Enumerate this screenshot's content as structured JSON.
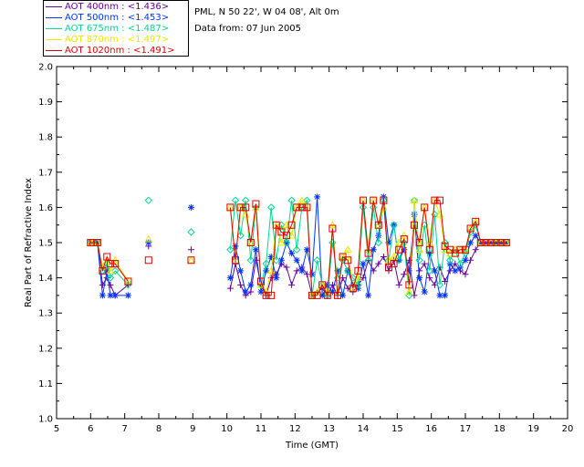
{
  "info": {
    "site": "PML, N 50 22', W 04 08', Alt 0m",
    "date": "Data from: 07 Jun 2005"
  },
  "legend": [
    {
      "label": "AOT  400nm : <1.436>",
      "color": "#660099",
      "marker": "plus"
    },
    {
      "label": "AOT  500nm : <1.453>",
      "color": "#0033ff",
      "marker": "star"
    },
    {
      "label": "AOT  675nm : <1.487>",
      "color": "#00d890",
      "marker": "diamond"
    },
    {
      "label": "AOT  870nm : <1.497>",
      "color": "#e8e800",
      "marker": "triangle"
    },
    {
      "label": "AOT 1020nm : <1.491>",
      "color": "#dd0000",
      "marker": "square"
    }
  ],
  "chart_data": {
    "type": "line",
    "xlabel": "Time (GMT)",
    "ylabel": "Real Part of Refractive Index",
    "xlim": [
      5,
      20
    ],
    "ylim": [
      1.0,
      2.0
    ],
    "xticks": [
      "5",
      "6",
      "7",
      "8",
      "9",
      "10",
      "11",
      "12",
      "13",
      "14",
      "15",
      "16",
      "17",
      "18",
      "19",
      "20"
    ],
    "yticks": [
      "1.0",
      "1.1",
      "1.2",
      "1.3",
      "1.4",
      "1.5",
      "1.6",
      "1.7",
      "1.8",
      "1.9",
      "2.0"
    ],
    "grid": false,
    "series": [
      {
        "name": "AOT  400nm : <1.436>",
        "color": "#660099",
        "marker": "plus",
        "x": [
          6.0,
          6.08,
          6.2,
          6.35,
          6.48,
          6.58,
          6.72,
          7.1,
          7.7,
          8.95,
          10.1,
          10.25,
          10.4,
          10.55,
          10.7,
          10.85,
          11.0,
          11.15,
          11.3,
          11.45,
          11.6,
          11.75,
          11.9,
          12.05,
          12.2,
          12.35,
          12.5,
          12.65,
          12.8,
          12.95,
          13.1,
          13.25,
          13.4,
          13.55,
          13.7,
          13.85,
          14.0,
          14.15,
          14.3,
          14.45,
          14.6,
          14.75,
          14.9,
          15.05,
          15.2,
          15.35,
          15.5,
          15.65,
          15.8,
          15.95,
          16.1,
          16.25,
          16.4,
          16.55,
          16.7,
          16.85,
          17.0,
          17.15,
          17.3,
          17.45,
          17.6,
          17.75,
          17.9,
          18.05,
          18.2
        ],
        "y": [
          1.5,
          1.5,
          1.5,
          1.38,
          1.4,
          1.38,
          1.35,
          1.38,
          1.49,
          1.48,
          1.37,
          1.44,
          1.38,
          1.35,
          1.36,
          1.45,
          1.38,
          1.35,
          1.4,
          1.41,
          1.44,
          1.43,
          1.38,
          1.42,
          1.43,
          1.41,
          1.35,
          1.36,
          1.37,
          1.35,
          1.38,
          1.35,
          1.4,
          1.37,
          1.36,
          1.38,
          1.4,
          1.45,
          1.42,
          1.44,
          1.46,
          1.42,
          1.45,
          1.38,
          1.41,
          1.45,
          1.35,
          1.42,
          1.44,
          1.4,
          1.38,
          1.43,
          1.39,
          1.42,
          1.44,
          1.42,
          1.41,
          1.45,
          1.48,
          1.5,
          1.5,
          1.5,
          1.5,
          1.5,
          1.5
        ]
      },
      {
        "name": "AOT  500nm : <1.453>",
        "color": "#0033ff",
        "marker": "star",
        "x": [
          6.0,
          6.08,
          6.2,
          6.35,
          6.48,
          6.58,
          6.72,
          7.1,
          7.7,
          8.95,
          10.1,
          10.25,
          10.4,
          10.55,
          10.7,
          10.85,
          11.0,
          11.15,
          11.3,
          11.45,
          11.6,
          11.75,
          11.9,
          12.05,
          12.2,
          12.35,
          12.5,
          12.65,
          12.8,
          12.95,
          13.1,
          13.25,
          13.4,
          13.55,
          13.7,
          13.85,
          14.0,
          14.15,
          14.3,
          14.45,
          14.6,
          14.75,
          14.9,
          15.05,
          15.2,
          15.35,
          15.5,
          15.65,
          15.8,
          15.95,
          16.1,
          16.25,
          16.4,
          16.55,
          16.7,
          16.85,
          17.0,
          17.15,
          17.3,
          17.45,
          17.6,
          17.75,
          17.9,
          18.05,
          18.2
        ],
        "y": [
          1.5,
          1.5,
          1.5,
          1.35,
          1.42,
          1.35,
          1.35,
          1.35,
          1.5,
          1.6,
          1.4,
          1.49,
          1.42,
          1.36,
          1.38,
          1.48,
          1.36,
          1.42,
          1.46,
          1.4,
          1.45,
          1.5,
          1.47,
          1.45,
          1.42,
          1.48,
          1.41,
          1.63,
          1.35,
          1.38,
          1.36,
          1.42,
          1.35,
          1.42,
          1.38,
          1.37,
          1.44,
          1.35,
          1.48,
          1.52,
          1.63,
          1.5,
          1.55,
          1.45,
          1.48,
          1.42,
          1.58,
          1.4,
          1.36,
          1.47,
          1.42,
          1.35,
          1.35,
          1.44,
          1.42,
          1.43,
          1.45,
          1.5,
          1.52,
          1.5,
          1.5,
          1.5,
          1.5,
          1.5,
          1.5
        ]
      },
      {
        "name": "AOT  675nm : <1.487>",
        "color": "#00d890",
        "marker": "diamond",
        "x": [
          6.0,
          6.08,
          6.2,
          6.35,
          6.48,
          6.58,
          6.72,
          7.1,
          7.7,
          8.95,
          10.1,
          10.25,
          10.4,
          10.55,
          10.7,
          10.85,
          11.0,
          11.15,
          11.3,
          11.45,
          11.6,
          11.75,
          11.9,
          12.05,
          12.2,
          12.35,
          12.5,
          12.65,
          12.8,
          12.95,
          13.1,
          13.25,
          13.4,
          13.55,
          13.7,
          13.85,
          14.0,
          14.15,
          14.3,
          14.45,
          14.6,
          14.75,
          14.9,
          15.05,
          15.2,
          15.35,
          15.5,
          15.65,
          15.8,
          15.95,
          16.1,
          16.25,
          16.4,
          16.55,
          16.7,
          16.85,
          17.0,
          17.15,
          17.3,
          17.45,
          17.6,
          17.75,
          17.9,
          18.05,
          18.2
        ],
        "y": [
          1.5,
          1.5,
          1.5,
          1.42,
          1.44,
          1.4,
          1.42,
          1.38,
          1.62,
          1.53,
          1.48,
          1.62,
          1.52,
          1.62,
          1.45,
          1.6,
          1.38,
          1.44,
          1.6,
          1.45,
          1.55,
          1.5,
          1.62,
          1.48,
          1.6,
          1.62,
          1.35,
          1.45,
          1.38,
          1.35,
          1.5,
          1.4,
          1.45,
          1.42,
          1.4,
          1.38,
          1.6,
          1.45,
          1.6,
          1.5,
          1.62,
          1.45,
          1.55,
          1.45,
          1.5,
          1.35,
          1.62,
          1.45,
          1.55,
          1.42,
          1.58,
          1.38,
          1.5,
          1.45,
          1.48,
          1.44,
          1.47,
          1.53,
          1.55,
          1.5,
          1.5,
          1.5,
          1.5,
          1.5,
          1.5
        ]
      },
      {
        "name": "AOT  870nm : <1.497>",
        "color": "#e8e800",
        "marker": "triangle",
        "x": [
          6.0,
          6.08,
          6.2,
          6.35,
          6.48,
          6.58,
          6.72,
          7.1,
          7.7,
          8.95,
          10.1,
          10.25,
          10.4,
          10.55,
          10.7,
          10.85,
          11.0,
          11.15,
          11.3,
          11.45,
          11.6,
          11.75,
          11.9,
          12.05,
          12.2,
          12.35,
          12.5,
          12.65,
          12.8,
          12.95,
          13.1,
          13.25,
          13.4,
          13.55,
          13.7,
          13.85,
          14.0,
          14.15,
          14.3,
          14.45,
          14.6,
          14.75,
          14.9,
          15.05,
          15.2,
          15.35,
          15.5,
          15.65,
          15.8,
          15.95,
          16.1,
          16.25,
          16.4,
          16.55,
          16.7,
          16.85,
          17.0,
          17.15,
          17.3,
          17.45,
          17.6,
          17.75,
          17.9,
          18.05,
          18.2
        ],
        "y": [
          1.5,
          1.5,
          1.5,
          1.43,
          1.45,
          1.42,
          1.45,
          1.39,
          1.51,
          1.45,
          1.6,
          1.45,
          1.6,
          1.58,
          1.5,
          1.6,
          1.38,
          1.36,
          1.42,
          1.55,
          1.5,
          1.55,
          1.52,
          1.6,
          1.62,
          1.6,
          1.35,
          1.36,
          1.38,
          1.36,
          1.55,
          1.36,
          1.46,
          1.48,
          1.37,
          1.4,
          1.62,
          1.48,
          1.62,
          1.55,
          1.6,
          1.45,
          1.46,
          1.5,
          1.52,
          1.36,
          1.62,
          1.48,
          1.6,
          1.5,
          1.62,
          1.58,
          1.48,
          1.47,
          1.48,
          1.48,
          1.48,
          1.54,
          1.56,
          1.5,
          1.5,
          1.5,
          1.5,
          1.5,
          1.5
        ]
      },
      {
        "name": "AOT 1020nm : <1.491>",
        "color": "#dd0000",
        "marker": "square",
        "x": [
          6.0,
          6.08,
          6.2,
          6.35,
          6.48,
          6.58,
          6.72,
          7.1,
          7.7,
          8.95,
          10.1,
          10.25,
          10.4,
          10.55,
          10.7,
          10.85,
          11.0,
          11.15,
          11.3,
          11.45,
          11.6,
          11.75,
          11.9,
          12.05,
          12.2,
          12.35,
          12.5,
          12.65,
          12.8,
          12.95,
          13.1,
          13.25,
          13.4,
          13.55,
          13.7,
          13.85,
          14.0,
          14.15,
          14.3,
          14.45,
          14.6,
          14.75,
          14.9,
          15.05,
          15.2,
          15.35,
          15.5,
          15.65,
          15.8,
          15.95,
          16.1,
          16.25,
          16.4,
          16.55,
          16.7,
          16.85,
          17.0,
          17.15,
          17.3,
          17.45,
          17.6,
          17.75,
          17.9,
          18.05,
          18.2
        ],
        "y": [
          1.5,
          1.5,
          1.5,
          1.42,
          1.46,
          1.44,
          1.44,
          1.39,
          1.45,
          1.45,
          1.6,
          1.45,
          1.6,
          1.6,
          1.5,
          1.61,
          1.39,
          1.35,
          1.35,
          1.55,
          1.53,
          1.52,
          1.55,
          1.6,
          1.6,
          1.6,
          1.35,
          1.35,
          1.38,
          1.35,
          1.54,
          1.35,
          1.46,
          1.45,
          1.37,
          1.42,
          1.62,
          1.47,
          1.62,
          1.55,
          1.62,
          1.43,
          1.44,
          1.48,
          1.51,
          1.38,
          1.55,
          1.5,
          1.6,
          1.48,
          1.62,
          1.62,
          1.49,
          1.48,
          1.47,
          1.48,
          1.48,
          1.54,
          1.56,
          1.5,
          1.5,
          1.5,
          1.5,
          1.5,
          1.5
        ]
      }
    ]
  }
}
